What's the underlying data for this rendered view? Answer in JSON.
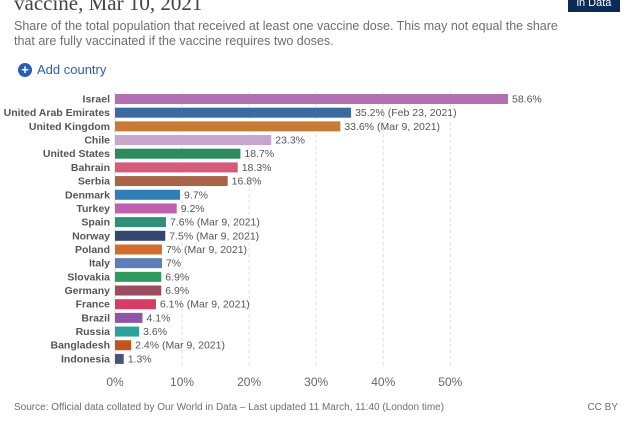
{
  "title": "vaccine, Mar 10, 2021",
  "subtitle": "Share of the total population that received at least one vaccine dose. This may not equal the share that are fully vaccinated if the vaccine requires two doses.",
  "logo_text": "in Data",
  "add_country_label": "Add country",
  "footer": {
    "source": "Source: Official data collated by Our World in Data – Last updated 11 March, 11:40 (London time)",
    "license": "CC BY"
  },
  "chart_data": {
    "type": "bar",
    "orientation": "horizontal",
    "xlim": [
      0,
      58.6
    ],
    "xticks": [
      "0%",
      "10%",
      "20%",
      "30%",
      "40%",
      "50%"
    ],
    "xtick_values": [
      0,
      10,
      20,
      30,
      40,
      50
    ],
    "grid": true,
    "bars": [
      {
        "category": "Israel",
        "value": 58.6,
        "label": "58.6%",
        "color": "#b370b2"
      },
      {
        "category": "United Arab Emirates",
        "value": 35.2,
        "label": "35.2% (Feb 23, 2021)",
        "color": "#3b6aa0"
      },
      {
        "category": "United Kingdom",
        "value": 33.6,
        "label": "33.6% (Mar 9, 2021)",
        "color": "#c77a36"
      },
      {
        "category": "Chile",
        "value": 23.3,
        "label": "23.3%",
        "color": "#c8a6cc"
      },
      {
        "category": "United States",
        "value": 18.7,
        "label": "18.7%",
        "color": "#2a8c5c"
      },
      {
        "category": "Bahrain",
        "value": 18.3,
        "label": "18.3%",
        "color": "#d45c7a"
      },
      {
        "category": "Serbia",
        "value": 16.8,
        "label": "16.8%",
        "color": "#a86348"
      },
      {
        "category": "Denmark",
        "value": 9.7,
        "label": "9.7%",
        "color": "#2f7fb4"
      },
      {
        "category": "Turkey",
        "value": 9.2,
        "label": "9.2%",
        "color": "#c061b0"
      },
      {
        "category": "Spain",
        "value": 7.6,
        "label": "7.6% (Mar 9, 2021)",
        "color": "#2f8f78"
      },
      {
        "category": "Norway",
        "value": 7.5,
        "label": "7.5% (Mar 9, 2021)",
        "color": "#34466e"
      },
      {
        "category": "Poland",
        "value": 7,
        "label": "7% (Mar 9, 2021)",
        "color": "#cf6e2e"
      },
      {
        "category": "Italy",
        "value": 7,
        "label": "7%",
        "color": "#5d7eb8"
      },
      {
        "category": "Slovakia",
        "value": 6.9,
        "label": "6.9%",
        "color": "#2f9a5e"
      },
      {
        "category": "Germany",
        "value": 6.9,
        "label": "6.9%",
        "color": "#9a4d5f"
      },
      {
        "category": "France",
        "value": 6.1,
        "label": "6.1% (Mar 9, 2021)",
        "color": "#d83c63"
      },
      {
        "category": "Brazil",
        "value": 4.1,
        "label": "4.1%",
        "color": "#8f56a8"
      },
      {
        "category": "Russia",
        "value": 3.6,
        "label": "3.6%",
        "color": "#2aa39a"
      },
      {
        "category": "Bangladesh",
        "value": 2.4,
        "label": "2.4% (Mar 9, 2021)",
        "color": "#c0551f"
      },
      {
        "category": "Indonesia",
        "value": 1.3,
        "label": "1.3%",
        "color": "#46567a"
      }
    ]
  }
}
